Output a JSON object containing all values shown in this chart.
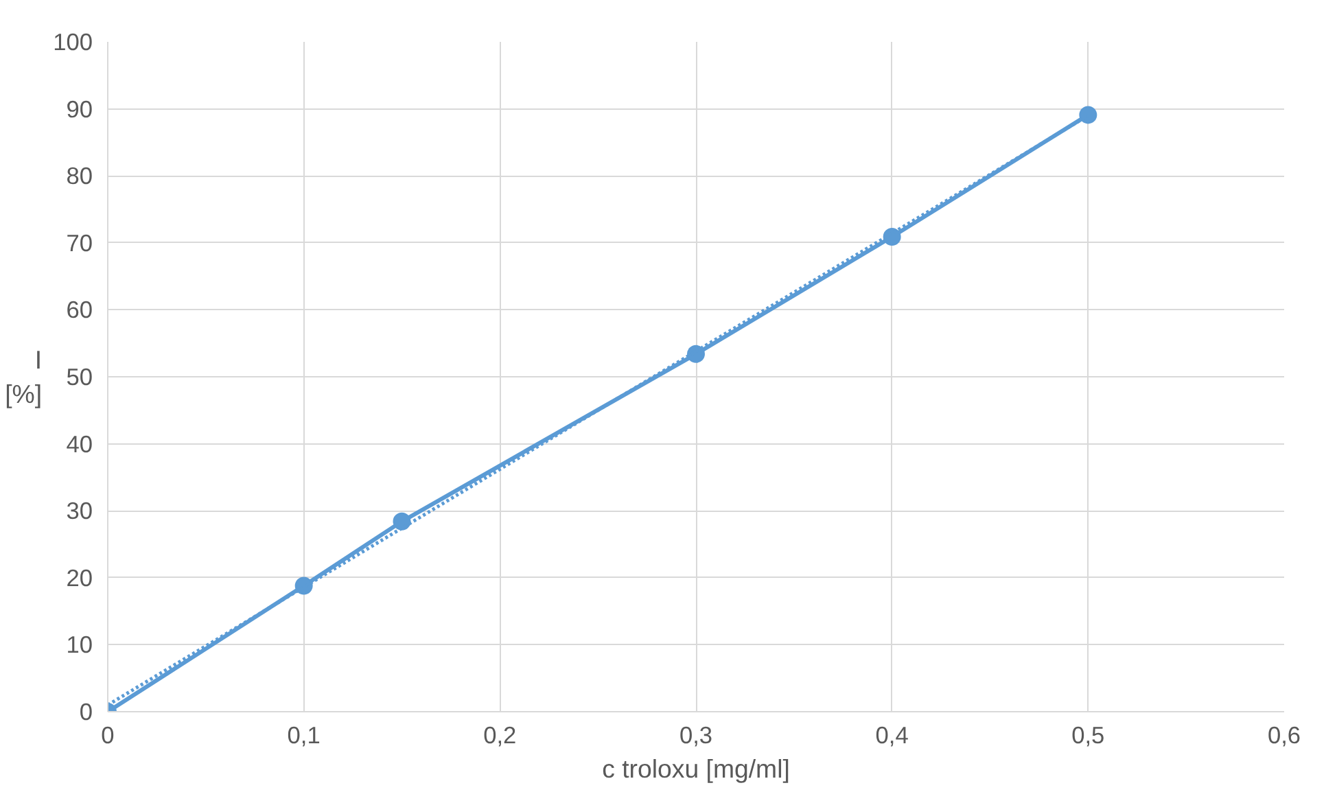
{
  "chart_data": {
    "type": "line",
    "xlabel": "c troloxu [mg/ml]",
    "ylabel": "I\n[%]",
    "x": [
      0,
      0.1,
      0.15,
      0.3,
      0.4,
      0.5
    ],
    "series": [
      {
        "color": "#5b9bd5",
        "values": [
          0,
          18.8,
          28.4,
          53.4,
          70.9,
          89.1
        ],
        "marker": "circle",
        "line_style": "solid"
      },
      {
        "type": "line",
        "color": "#5b9bd5",
        "x": [
          0,
          0.5
        ],
        "values": [
          1,
          89
        ],
        "marker": "none",
        "line_style": "dotted"
      }
    ],
    "xlim": [
      0,
      0.6
    ],
    "xticks": [
      0,
      {
        "value": 0.1,
        "label": "0,1"
      },
      {
        "value": 0.2,
        "label": "0,2"
      },
      {
        "value": 0.3,
        "label": "0,3"
      },
      {
        "value": 0.4,
        "label": "0,4"
      },
      {
        "value": 0.5,
        "label": "0,5"
      },
      {
        "value": 0.6,
        "label": "0,6"
      }
    ],
    "ylim": [
      0,
      100
    ],
    "yticks": [
      0,
      10,
      20,
      30,
      40,
      50,
      60,
      70,
      80,
      90,
      100
    ],
    "grid": true
  }
}
